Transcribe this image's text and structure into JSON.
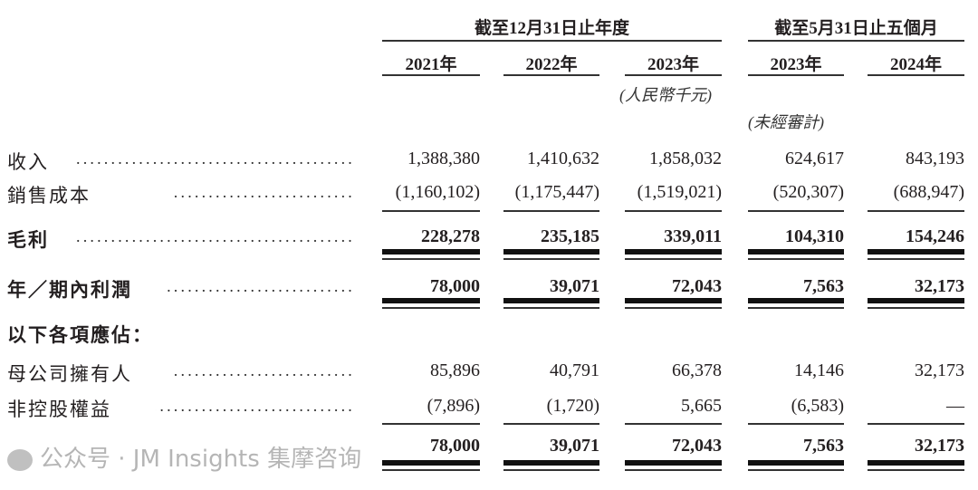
{
  "header": {
    "group_annual": "截至12月31日止年度",
    "group_period": "截至5月31日止五個月",
    "years": [
      "2021年",
      "2022年",
      "2023年",
      "2023年",
      "2024年"
    ],
    "unit_note": "(人民幣千元)",
    "unaudited_note": "(未經審計)"
  },
  "rows": [
    {
      "label": "收入",
      "bold": false,
      "values": [
        "1,388,380",
        "1,410,632",
        "1,858,032",
        "624,617",
        "843,193"
      ]
    },
    {
      "label": "銷售成本",
      "bold": false,
      "values": [
        "(1,160,102)",
        "(1,175,447)",
        "(1,519,021)",
        "(520,307)",
        "(688,947)"
      ]
    },
    {
      "label": "毛利",
      "bold": true,
      "values": [
        "228,278",
        "235,185",
        "339,011",
        "104,310",
        "154,246"
      ]
    },
    {
      "label": "年／期內利潤",
      "bold": true,
      "values": [
        "78,000",
        "39,071",
        "72,043",
        "7,563",
        "32,173"
      ]
    },
    {
      "label": "以下各項應佔：",
      "bold": true,
      "values": []
    },
    {
      "label": "母公司擁有人",
      "bold": false,
      "values": [
        "85,896",
        "40,791",
        "66,378",
        "14,146",
        "32,173"
      ]
    },
    {
      "label": "非控股權益",
      "bold": false,
      "values": [
        "(7,896)",
        "(1,720)",
        "5,665",
        "(6,583)",
        "—"
      ]
    },
    {
      "label": "",
      "bold": true,
      "values": [
        "78,000",
        "39,071",
        "72,043",
        "7,563",
        "32,173"
      ]
    }
  ],
  "watermark": "公众号 · JM Insights 集摩咨询"
}
